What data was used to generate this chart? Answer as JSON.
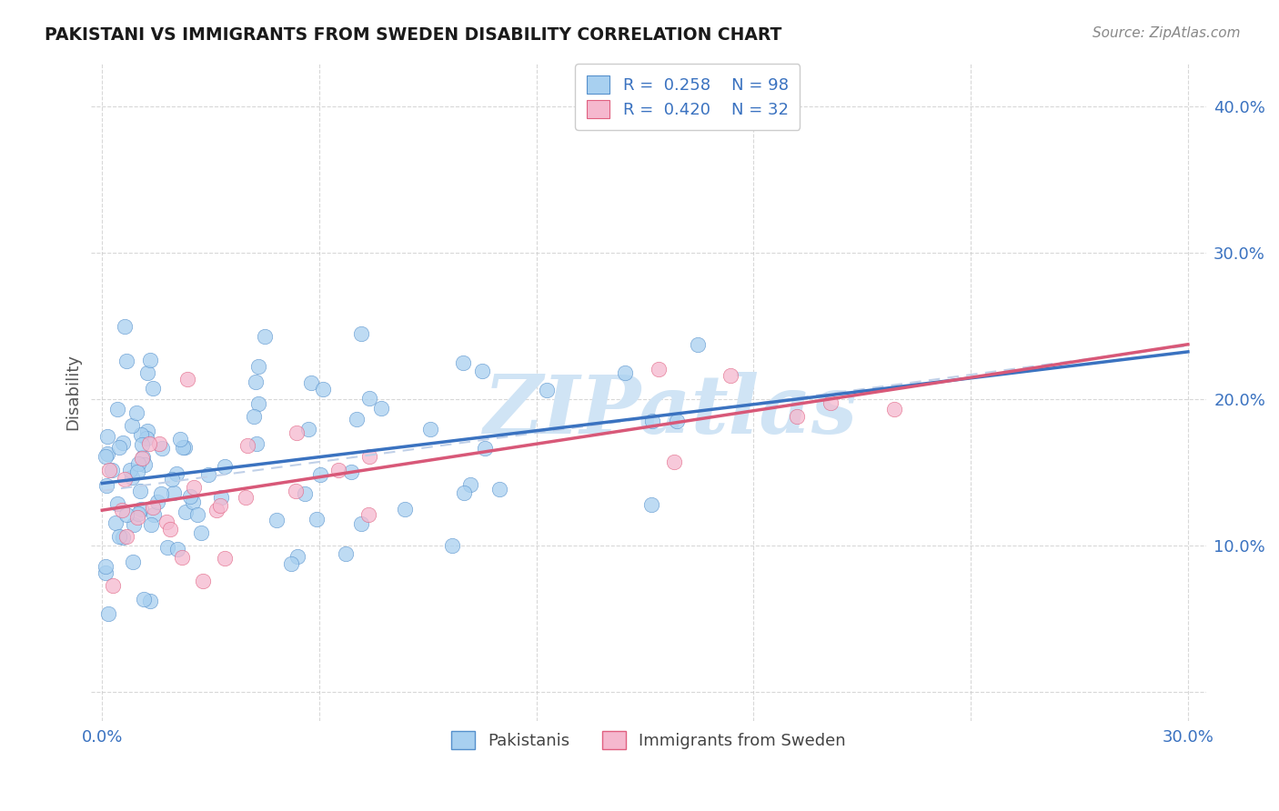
{
  "title": "PAKISTANI VS IMMIGRANTS FROM SWEDEN DISABILITY CORRELATION CHART",
  "source": "Source: ZipAtlas.com",
  "ylabel": "Disability",
  "xlim": [
    -0.003,
    0.305
  ],
  "ylim": [
    -0.02,
    0.43
  ],
  "yticks": [
    0.0,
    0.1,
    0.2,
    0.3,
    0.4
  ],
  "ytick_labels": [
    "",
    "10.0%",
    "20.0%",
    "30.0%",
    "40.0%"
  ],
  "xticks": [
    0.0,
    0.06,
    0.12,
    0.18,
    0.24,
    0.3
  ],
  "xtick_labels": [
    "0.0%",
    "",
    "",
    "",
    "",
    "30.0%"
  ],
  "blue_R": 0.258,
  "blue_N": 98,
  "pink_R": 0.42,
  "pink_N": 32,
  "blue_fill": "#a8d0f0",
  "pink_fill": "#f5b8ce",
  "blue_edge": "#5590cc",
  "pink_edge": "#e06080",
  "blue_line": "#3a72c0",
  "pink_line": "#d85878",
  "dash_line": "#c0d0e8",
  "legend_label_blue": "Pakistanis",
  "legend_label_pink": "Immigrants from Sweden",
  "watermark": "ZIPatlas",
  "watermark_color": "#d0e4f5",
  "grid_color": "#c8c8c8",
  "title_color": "#1a1a1a",
  "source_color": "#888888",
  "axis_label_color": "#555555",
  "tick_color": "#3a72c0",
  "blue_line_y0": 0.145,
  "blue_line_y1": 0.245,
  "pink_line_y0": 0.138,
  "pink_line_y1": 0.248,
  "dash_line_y0": 0.148,
  "dash_line_y1": 0.252
}
